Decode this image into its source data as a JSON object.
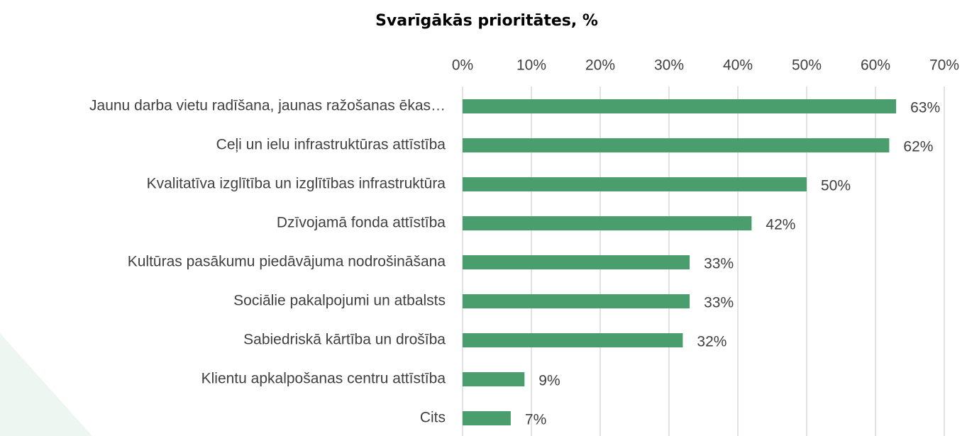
{
  "chart_data": {
    "type": "bar",
    "orientation": "horizontal",
    "title": "Svarīgākās prioritātes, %",
    "categories": [
      "Jaunu darba vietu radīšana, jaunas ražošanas ēkas…",
      "Ceļi un ielu infrastruktūras attīstība",
      "Kvalitatīva izglītība un izglītības infrastruktūra",
      "Dzīvojamā fonda attīstība",
      "Kultūras pasākumu piedāvājuma nodrošināšana",
      "Sociālie pakalpojumi un atbalsts",
      "Sabiedriskā kārtība un drošība",
      "Klientu apkalpošanas centru attīstība",
      "Cits"
    ],
    "values": [
      63,
      62,
      50,
      42,
      33,
      33,
      32,
      9,
      7
    ],
    "value_labels": [
      "63%",
      "62%",
      "50%",
      "42%",
      "33%",
      "33%",
      "32%",
      "9%",
      "7%"
    ],
    "color": "#4a9e6e",
    "xlim": [
      0,
      70
    ],
    "xticks": [
      {
        "value": 0,
        "label": "0%"
      },
      {
        "value": 10,
        "label": "10%"
      },
      {
        "value": 20,
        "label": "20%"
      },
      {
        "value": 30,
        "label": "30%"
      },
      {
        "value": 40,
        "label": "40%"
      },
      {
        "value": 50,
        "label": "50%"
      },
      {
        "value": 60,
        "label": "60%"
      },
      {
        "value": 70,
        "label": "70%"
      }
    ],
    "grid": true
  }
}
